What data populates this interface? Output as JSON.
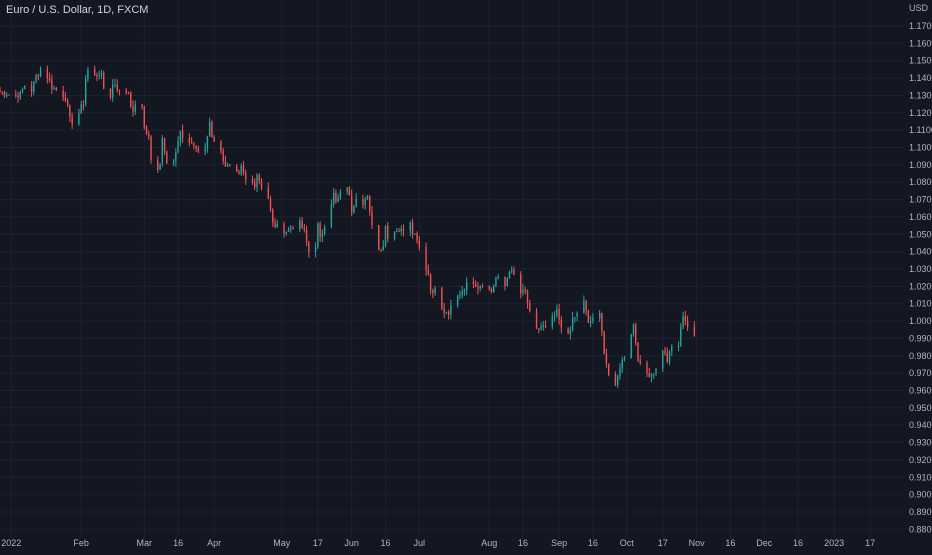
{
  "header": {
    "title": "Euro / U.S. Dollar, 1D, FXCM"
  },
  "colors": {
    "background": "#131722",
    "up": "#26a69a",
    "down": "#ef5350",
    "grid": "#1e2230",
    "axis_text": "#b2b5be"
  },
  "chart_data": {
    "type": "candlestick",
    "title": "Euro / U.S. Dollar, 1D, FXCM",
    "currency_label": "USD",
    "ylim": [
      0.875,
      1.185
    ],
    "xlim": [
      "2021-12-27",
      "2023-02-01"
    ],
    "y_ticks": [
      "1.17000",
      "1.16000",
      "1.15000",
      "1.14000",
      "1.13000",
      "1.12000",
      "1.11000",
      "1.10000",
      "1.09000",
      "1.08000",
      "1.07000",
      "1.06000",
      "1.05000",
      "1.04000",
      "1.03000",
      "1.02000",
      "1.01000",
      "1.00000",
      "0.99000",
      "0.98000",
      "0.97000",
      "0.96000",
      "0.95000",
      "0.94000",
      "0.93000",
      "0.92000",
      "0.91000",
      "0.90000",
      "0.89000",
      "0.88000"
    ],
    "x_ticks": [
      {
        "label": "2022",
        "date": "2022-01-01"
      },
      {
        "label": "Feb",
        "date": "2022-02-01"
      },
      {
        "label": "Mar",
        "date": "2022-03-01"
      },
      {
        "label": "16",
        "date": "2022-03-16"
      },
      {
        "label": "Apr",
        "date": "2022-04-01"
      },
      {
        "label": "May",
        "date": "2022-05-01"
      },
      {
        "label": "17",
        "date": "2022-05-17"
      },
      {
        "label": "Jun",
        "date": "2022-06-01"
      },
      {
        "label": "16",
        "date": "2022-06-16"
      },
      {
        "label": "Jul",
        "date": "2022-07-01"
      },
      {
        "label": "Aug",
        "date": "2022-08-01"
      },
      {
        "label": "16",
        "date": "2022-08-16"
      },
      {
        "label": "Sep",
        "date": "2022-09-01"
      },
      {
        "label": "16",
        "date": "2022-09-16"
      },
      {
        "label": "Oct",
        "date": "2022-10-01"
      },
      {
        "label": "17",
        "date": "2022-10-17"
      },
      {
        "label": "Nov",
        "date": "2022-11-01"
      },
      {
        "label": "16",
        "date": "2022-11-16"
      },
      {
        "label": "Dec",
        "date": "2022-12-01"
      },
      {
        "label": "16",
        "date": "2022-12-16"
      },
      {
        "label": "2023",
        "date": "2023-01-01"
      },
      {
        "label": "17",
        "date": "2023-01-17"
      }
    ],
    "close_path": [
      [
        "2021-12-27",
        1.132
      ],
      [
        "2022-01-03",
        1.13
      ],
      [
        "2022-01-05",
        1.131
      ],
      [
        "2022-01-07",
        1.136
      ],
      [
        "2022-01-10",
        1.133
      ],
      [
        "2022-01-12",
        1.141
      ],
      [
        "2022-01-14",
        1.145
      ],
      [
        "2022-01-17",
        1.141
      ],
      [
        "2022-01-19",
        1.135
      ],
      [
        "2022-01-21",
        1.133
      ],
      [
        "2022-01-25",
        1.129
      ],
      [
        "2022-01-27",
        1.116
      ],
      [
        "2022-01-28",
        1.115
      ],
      [
        "2022-01-31",
        1.12
      ],
      [
        "2022-02-02",
        1.126
      ],
      [
        "2022-02-03",
        1.14
      ],
      [
        "2022-02-04",
        1.145
      ],
      [
        "2022-02-07",
        1.141
      ],
      [
        "2022-02-09",
        1.143
      ],
      [
        "2022-02-10",
        1.141
      ],
      [
        "2022-02-11",
        1.134
      ],
      [
        "2022-02-14",
        1.13
      ],
      [
        "2022-02-15",
        1.136
      ],
      [
        "2022-02-16",
        1.137
      ],
      [
        "2022-02-18",
        1.132
      ],
      [
        "2022-02-22",
        1.132
      ],
      [
        "2022-02-24",
        1.119
      ],
      [
        "2022-02-25",
        1.126
      ],
      [
        "2022-02-28",
        1.122
      ],
      [
        "2022-03-01",
        1.112
      ],
      [
        "2022-03-03",
        1.106
      ],
      [
        "2022-03-04",
        1.093
      ],
      [
        "2022-03-07",
        1.086
      ],
      [
        "2022-03-08",
        1.09
      ],
      [
        "2022-03-09",
        1.107
      ],
      [
        "2022-03-11",
        1.091
      ],
      [
        "2022-03-14",
        1.094
      ],
      [
        "2022-03-16",
        1.104
      ],
      [
        "2022-03-17",
        1.109
      ],
      [
        "2022-03-18",
        1.105
      ],
      [
        "2022-03-21",
        1.101
      ],
      [
        "2022-03-22",
        1.103
      ],
      [
        "2022-03-25",
        1.098
      ],
      [
        "2022-03-28",
        1.098
      ],
      [
        "2022-03-30",
        1.115
      ],
      [
        "2022-03-31",
        1.107
      ],
      [
        "2022-04-04",
        1.097
      ],
      [
        "2022-04-06",
        1.09
      ],
      [
        "2022-04-08",
        1.088
      ],
      [
        "2022-04-12",
        1.083
      ],
      [
        "2022-04-13",
        1.088
      ],
      [
        "2022-04-15",
        1.081
      ],
      [
        "2022-04-19",
        1.079
      ],
      [
        "2022-04-20",
        1.085
      ],
      [
        "2022-04-22",
        1.078
      ],
      [
        "2022-04-25",
        1.071
      ],
      [
        "2022-04-27",
        1.056
      ],
      [
        "2022-04-29",
        1.054
      ],
      [
        "2022-05-03",
        1.052
      ],
      [
        "2022-05-05",
        1.054
      ],
      [
        "2022-05-09",
        1.056
      ],
      [
        "2022-05-11",
        1.051
      ],
      [
        "2022-05-13",
        1.04
      ],
      [
        "2022-05-16",
        1.044
      ],
      [
        "2022-05-17",
        1.055
      ],
      [
        "2022-05-18",
        1.047
      ],
      [
        "2022-05-20",
        1.056
      ],
      [
        "2022-05-24",
        1.073
      ],
      [
        "2022-05-25",
        1.068
      ],
      [
        "2022-05-27",
        1.073
      ],
      [
        "2022-05-30",
        1.078
      ],
      [
        "2022-06-01",
        1.064
      ],
      [
        "2022-06-03",
        1.072
      ],
      [
        "2022-06-06",
        1.069
      ],
      [
        "2022-06-08",
        1.071
      ],
      [
        "2022-06-09",
        1.062
      ],
      [
        "2022-06-13",
        1.041
      ],
      [
        "2022-06-15",
        1.044
      ],
      [
        "2022-06-16",
        1.055
      ],
      [
        "2022-06-17",
        1.049
      ],
      [
        "2022-06-21",
        1.053
      ],
      [
        "2022-06-23",
        1.052
      ],
      [
        "2022-06-27",
        1.058
      ],
      [
        "2022-06-28",
        1.052
      ],
      [
        "2022-06-30",
        1.048
      ],
      [
        "2022-07-01",
        1.043
      ],
      [
        "2022-07-05",
        1.027
      ],
      [
        "2022-07-06",
        1.018
      ],
      [
        "2022-07-08",
        1.018
      ],
      [
        "2022-07-12",
        1.004
      ],
      [
        "2022-07-13",
        1.006
      ],
      [
        "2022-07-14",
        1.002
      ],
      [
        "2022-07-15",
        1.008
      ],
      [
        "2022-07-18",
        1.014
      ],
      [
        "2022-07-20",
        1.018
      ],
      [
        "2022-07-22",
        1.021
      ],
      [
        "2022-07-25",
        1.023
      ],
      [
        "2022-07-27",
        1.02
      ],
      [
        "2022-07-29",
        1.022
      ],
      [
        "2022-08-02",
        1.017
      ],
      [
        "2022-08-04",
        1.025
      ],
      [
        "2022-08-08",
        1.02
      ],
      [
        "2022-08-10",
        1.03
      ],
      [
        "2022-08-12",
        1.026
      ],
      [
        "2022-08-15",
        1.016
      ],
      [
        "2022-08-17",
        1.017
      ],
      [
        "2022-08-19",
        1.004
      ],
      [
        "2022-08-22",
        0.994
      ],
      [
        "2022-08-24",
        0.997
      ],
      [
        "2022-08-26",
        0.996
      ],
      [
        "2022-08-29",
        1.001
      ],
      [
        "2022-08-31",
        1.005
      ],
      [
        "2022-09-02",
        0.995
      ],
      [
        "2022-09-05",
        0.993
      ],
      [
        "2022-09-07",
        1.0
      ],
      [
        "2022-09-09",
        1.004
      ],
      [
        "2022-09-12",
        1.012
      ],
      [
        "2022-09-14",
        0.998
      ],
      [
        "2022-09-16",
        1.002
      ],
      [
        "2022-09-19",
        1.003
      ],
      [
        "2022-09-21",
        0.983
      ],
      [
        "2022-09-23",
        0.969
      ],
      [
        "2022-09-26",
        0.961
      ],
      [
        "2022-09-28",
        0.974
      ],
      [
        "2022-09-30",
        0.98
      ],
      [
        "2022-10-04",
        0.998
      ],
      [
        "2022-10-06",
        0.979
      ],
      [
        "2022-10-07",
        0.974
      ],
      [
        "2022-10-10",
        0.97
      ],
      [
        "2022-10-12",
        0.97
      ],
      [
        "2022-10-14",
        0.972
      ],
      [
        "2022-10-17",
        0.984
      ],
      [
        "2022-10-19",
        0.977
      ],
      [
        "2022-10-21",
        0.985
      ],
      [
        "2022-10-24",
        0.986
      ],
      [
        "2022-10-26",
        1.004
      ],
      [
        "2022-10-28",
        0.997
      ],
      [
        "2022-10-31",
        0.99
      ]
    ]
  }
}
